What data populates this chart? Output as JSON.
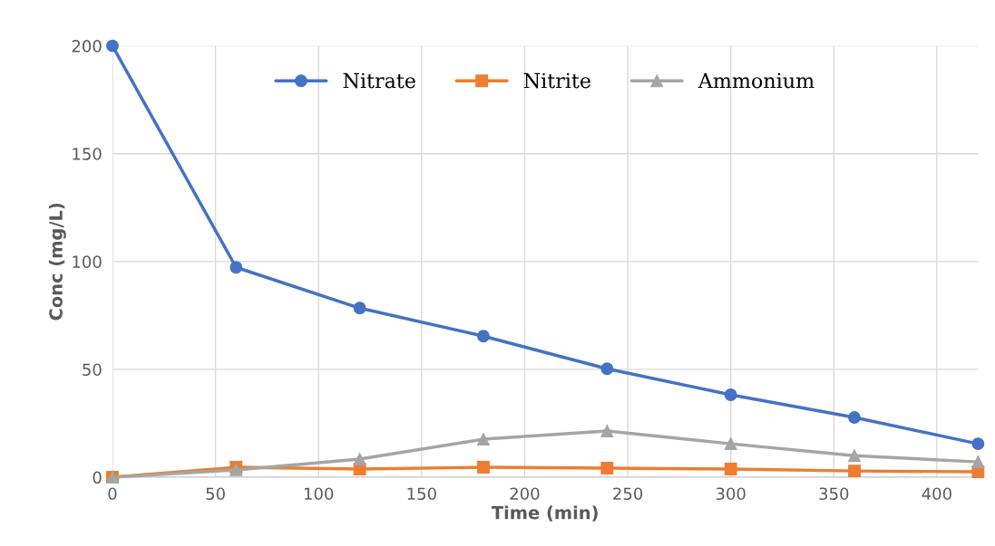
{
  "chart_data": {
    "type": "line",
    "xlabel": "Time (min)",
    "ylabel": "Conc (mg/L)",
    "x": [
      0,
      60,
      120,
      180,
      240,
      300,
      360,
      420
    ],
    "series": [
      {
        "name": "Nitrate",
        "color": "#4472c4",
        "marker": "circle",
        "values": [
          200,
          97.3,
          78.4,
          65.4,
          50.3,
          38.2,
          27.7,
          15.5
        ]
      },
      {
        "name": "Nitrite",
        "color": "#ed7d31",
        "marker": "square",
        "values": [
          0,
          4.6,
          3.8,
          4.6,
          4.2,
          3.8,
          2.9,
          2.5
        ]
      },
      {
        "name": "Ammonium",
        "color": "#a5a5a5",
        "marker": "triangle",
        "values": [
          0,
          3.4,
          8.4,
          17.6,
          21.4,
          15.5,
          10,
          7.1
        ]
      }
    ],
    "xlim": [
      0,
      420
    ],
    "xticks": [
      0,
      50,
      100,
      150,
      200,
      250,
      300,
      350,
      400
    ],
    "ylim": [
      0,
      200
    ],
    "yticks": [
      0,
      50,
      100,
      150,
      200
    ],
    "grid": true,
    "legend": "top",
    "line_style": "solid"
  }
}
